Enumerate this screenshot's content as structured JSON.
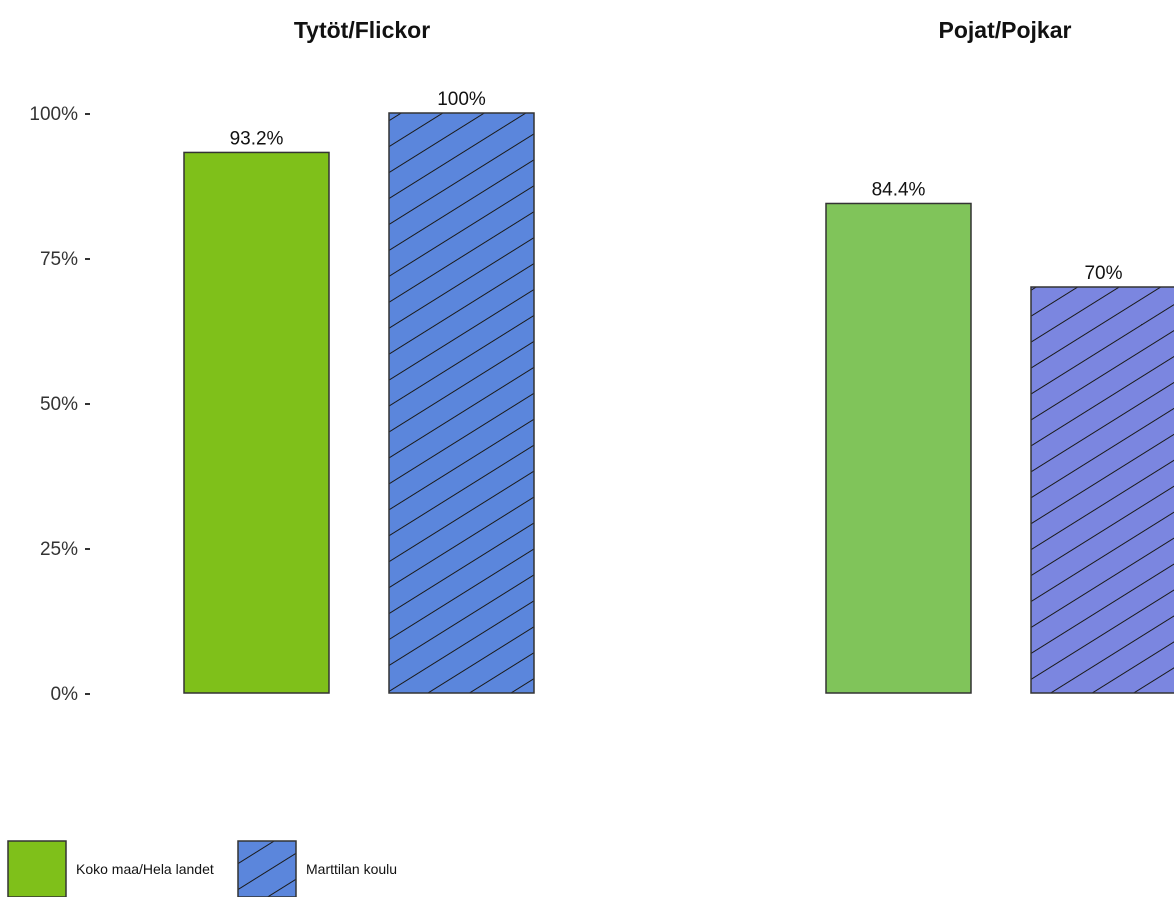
{
  "chart_data": {
    "type": "bar",
    "ylim": [
      0,
      100
    ],
    "yticks": [
      {
        "value": 0,
        "label": "0%"
      },
      {
        "value": 25,
        "label": "25%"
      },
      {
        "value": 50,
        "label": "50%"
      },
      {
        "value": 75,
        "label": "75%"
      },
      {
        "value": 100,
        "label": "100%"
      }
    ],
    "grid": false,
    "legend_position": "bottom-left",
    "panels": [
      {
        "title": "Tytöt/Flickor",
        "bars": [
          {
            "series": "Koko maa/Hela landet",
            "value": 93.2,
            "label": "93.2%"
          },
          {
            "series": "Marttilan koulu",
            "value": 100,
            "label": "100%"
          }
        ]
      },
      {
        "title": "Pojat/Pojkar",
        "bars": [
          {
            "series": "Koko maa/Hela landet",
            "value": 84.4,
            "label": "84.4%"
          },
          {
            "series": "Marttilan koulu",
            "value": 70,
            "label": "70%"
          }
        ]
      }
    ],
    "series": [
      {
        "name": "Koko maa/Hela landet",
        "color": "#7fc01a",
        "pattern": "solid"
      },
      {
        "name": "Marttilan koulu",
        "color": "#5b86dc",
        "pattern": "diagonal-hatch"
      }
    ]
  },
  "colors": {
    "panel_2_green": "#80c45a",
    "panel_2_blue": "#7b86e0",
    "outline": "#333333"
  }
}
